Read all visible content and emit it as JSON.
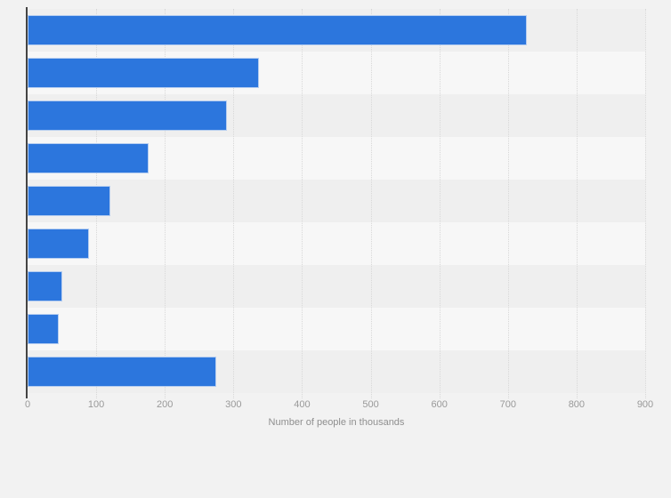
{
  "page": {
    "background_color": "#f2f2f2"
  },
  "chart_data": {
    "type": "bar",
    "orientation": "horizontal",
    "title": "",
    "categories": [
      "",
      "",
      "",
      "",
      "",
      "",
      "",
      "",
      ""
    ],
    "values": [
      727,
      337,
      291,
      177,
      120,
      89,
      50,
      45,
      275
    ],
    "xlabel": "Number of people in thousands",
    "ylabel": "",
    "xlim": [
      0,
      900
    ],
    "xticks": [
      0,
      100,
      200,
      300,
      400,
      500,
      600,
      700,
      800,
      900
    ],
    "grid": "vertical-dotted",
    "legend": "none",
    "bar_color": "#2c76dd",
    "bar_border_color": "#b5cdf0",
    "band_color_odd": "#efefef",
    "band_color_even": "#f7f7f7",
    "gridline_color": "#d8d8d8",
    "axis_line_color": "#444444",
    "tick_label_color": "#999999",
    "axis_label_color": "#8f8f8f"
  }
}
